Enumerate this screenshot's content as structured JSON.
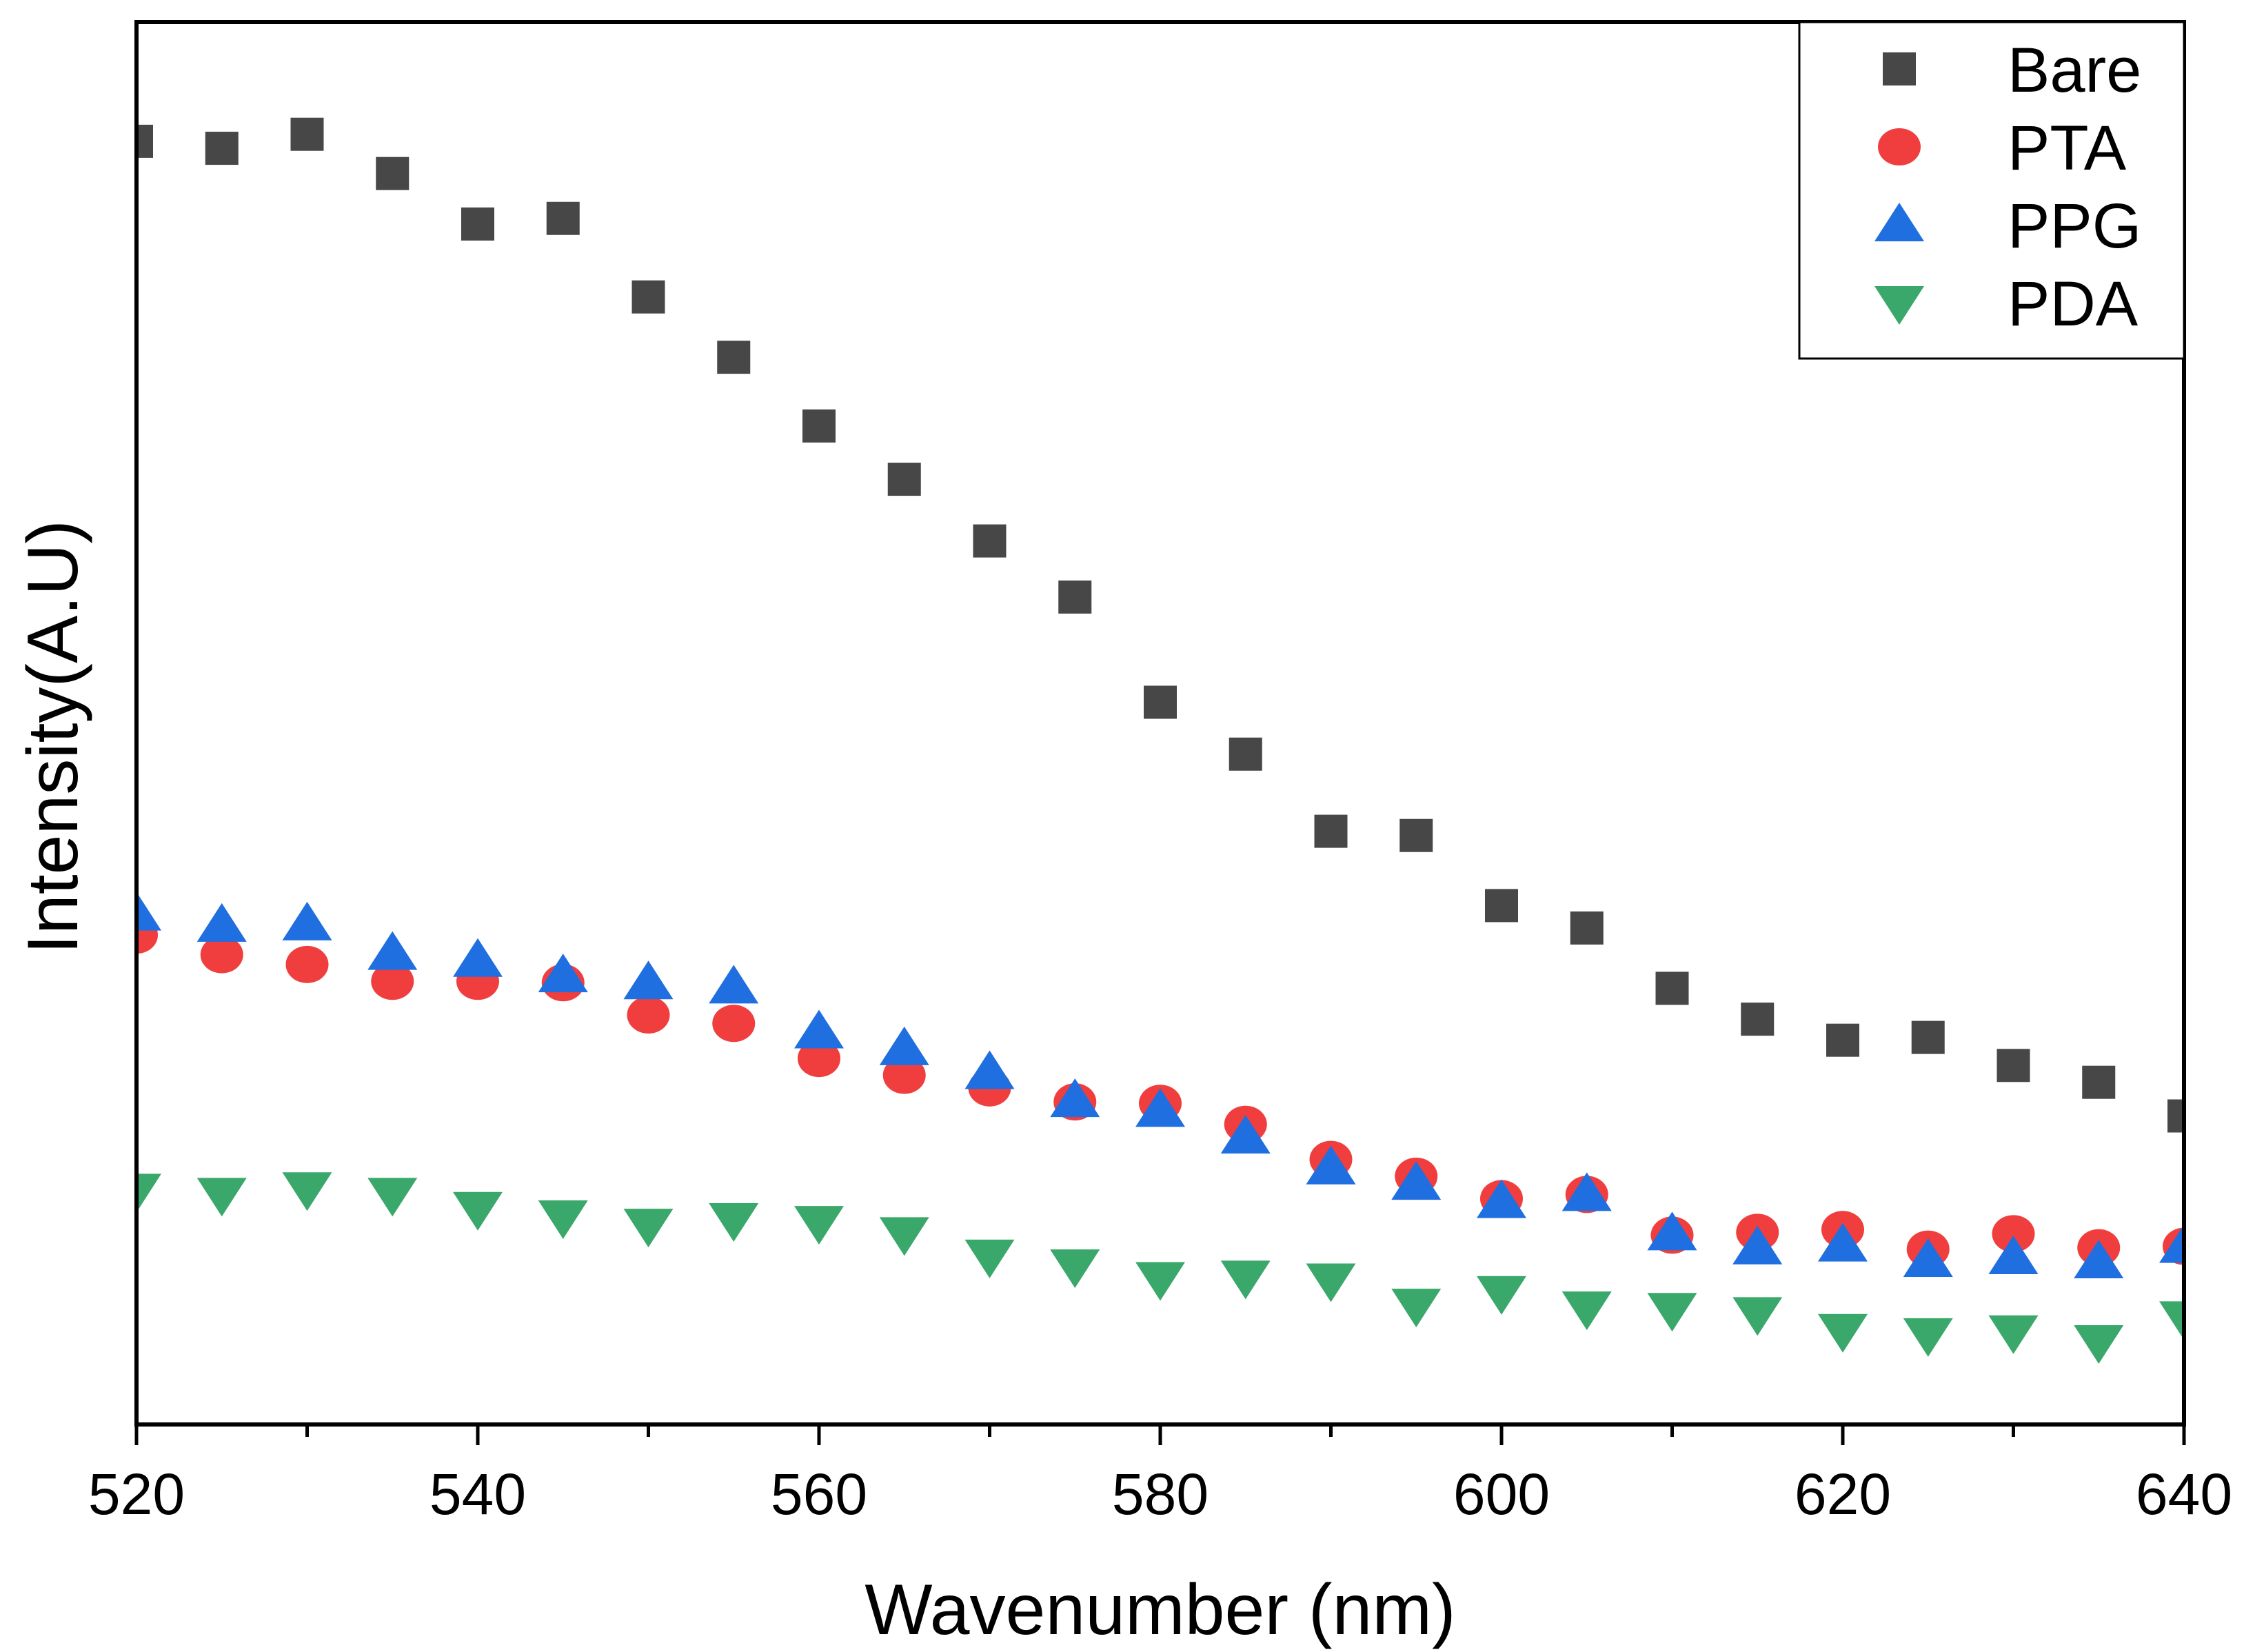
{
  "chart_data": {
    "type": "scatter",
    "title": "",
    "xlabel": "Wavenumber (nm)",
    "ylabel": "Intensity(A.U)",
    "xlim": [
      520,
      640
    ],
    "ylim": [
      0,
      100
    ],
    "xticks": [
      "520",
      "540",
      "560",
      "580",
      "600",
      "620",
      "640"
    ],
    "grid": false,
    "legend_position": "top-right",
    "x": [
      520,
      525,
      530,
      535,
      540,
      545,
      550,
      555,
      560,
      565,
      570,
      575,
      580,
      585,
      590,
      595,
      600,
      605,
      610,
      615,
      620,
      625,
      630,
      635,
      640
    ],
    "series": [
      {
        "name": "Bare",
        "marker": "square",
        "color": "#474747",
        "values": [
          91.5,
          91.0,
          92.0,
          89.2,
          85.6,
          86.0,
          80.4,
          76.1,
          71.2,
          67.4,
          63.0,
          59.0,
          51.5,
          47.8,
          42.3,
          42.0,
          37.0,
          35.4,
          31.1,
          28.9,
          27.4,
          27.6,
          25.6,
          24.4,
          22.0
        ]
      },
      {
        "name": "PTA",
        "marker": "circle",
        "color": "#f03e3e",
        "values": [
          34.9,
          33.5,
          32.8,
          31.6,
          31.6,
          31.5,
          29.2,
          28.6,
          26.1,
          24.9,
          24.0,
          23.0,
          22.9,
          21.4,
          18.9,
          17.7,
          16.1,
          16.4,
          13.5,
          13.7,
          13.9,
          12.5,
          13.6,
          12.6,
          12.7
        ]
      },
      {
        "name": "PPG",
        "marker": "triangle-up",
        "color": "#1f6fe0",
        "values": [
          36.4,
          35.6,
          35.7,
          33.6,
          33.1,
          32.0,
          31.5,
          31.2,
          28.0,
          26.8,
          25.1,
          23.1,
          22.4,
          20.5,
          18.3,
          17.2,
          15.9,
          16.4,
          13.6,
          12.6,
          12.8,
          11.7,
          11.9,
          11.6,
          12.7
        ]
      },
      {
        "name": "PDA",
        "marker": "triangle-down",
        "color": "#3aa86b",
        "values": [
          16.7,
          16.4,
          16.8,
          16.4,
          15.4,
          14.8,
          14.2,
          14.6,
          14.4,
          13.6,
          12.0,
          11.3,
          10.4,
          10.5,
          10.3,
          8.5,
          9.4,
          8.3,
          8.2,
          7.9,
          6.7,
          6.4,
          6.6,
          5.9,
          7.6
        ]
      }
    ]
  }
}
